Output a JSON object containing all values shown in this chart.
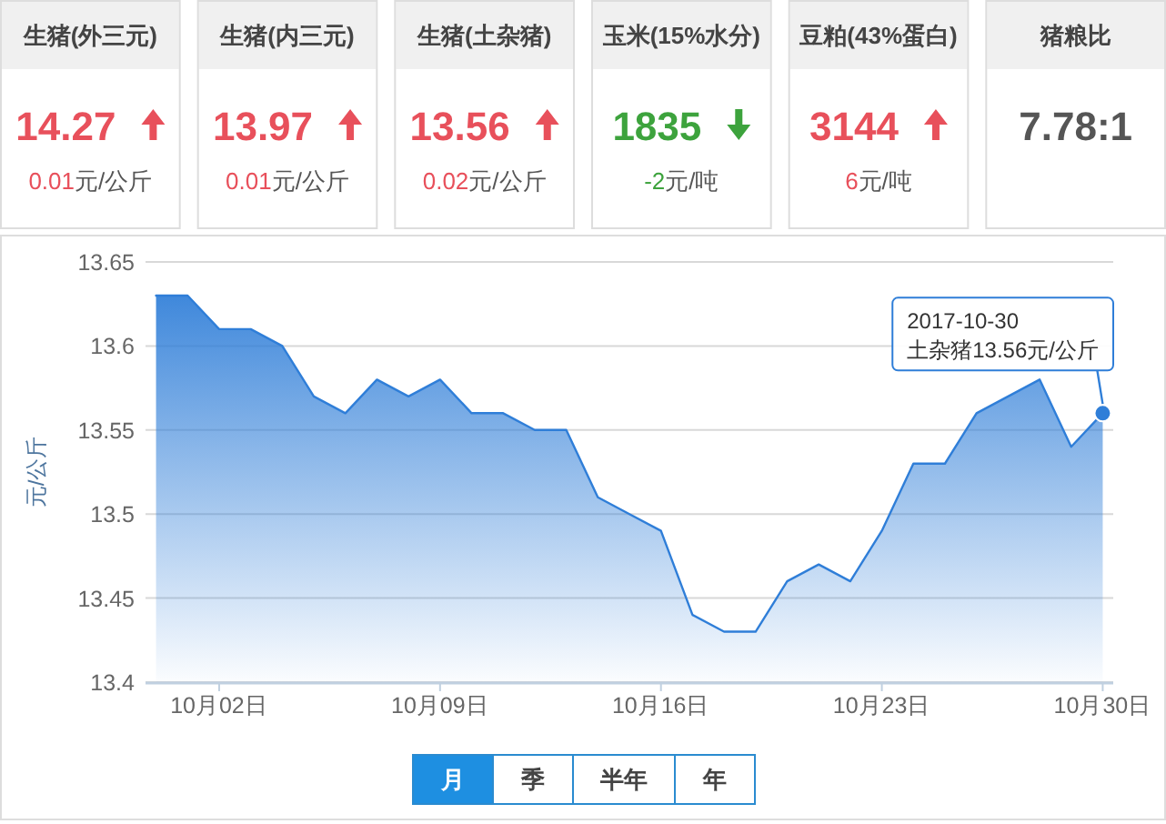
{
  "chart_data": [
    {
      "type": "other",
      "title": "生猪(外三元)",
      "annotations": [
        "14.27",
        "元/公斤"
      ],
      "values": [
        0.01
      ],
      "data_labels": true,
      "color": "#e8505b"
    },
    {
      "type": "other",
      "title": "生猪(内三元)",
      "annotations": [
        "13.97",
        "元/公斤"
      ],
      "values": [
        0.01
      ],
      "data_labels": true,
      "color": "#e8505b"
    },
    {
      "type": "other",
      "title": "生猪(土杂猪)",
      "annotations": [
        "13.56",
        "元/公斤"
      ],
      "values": [
        0.02
      ],
      "data_labels": true,
      "color": "#e8505b"
    },
    {
      "type": "other",
      "title": "玉米(15%水分)",
      "annotations": [
        "1835",
        "元/吨"
      ],
      "values": [
        -2
      ],
      "data_labels": true,
      "color": "#3da33d"
    },
    {
      "type": "other",
      "title": "豆粕(43%蛋白)",
      "annotations": [
        "3144",
        "元/吨"
      ],
      "values": [
        6
      ],
      "data_labels": true,
      "color": "#e8505b"
    },
    {
      "type": "other",
      "title": "猪粮比",
      "annotations": [
        "7.78:1"
      ],
      "color": "#555555"
    },
    {
      "type": "area",
      "ylabel": "元/公斤",
      "color": "#2f7ed8",
      "x": [
        "2017-09-30",
        "2017-10-01",
        "2017-10-02",
        "2017-10-03",
        "2017-10-04",
        "2017-10-05",
        "2017-10-06",
        "2017-10-07",
        "2017-10-08",
        "2017-10-09",
        "2017-10-10",
        "2017-10-11",
        "2017-10-12",
        "2017-10-13",
        "2017-10-14",
        "2017-10-15",
        "2017-10-16",
        "2017-10-17",
        "2017-10-18",
        "2017-10-19",
        "2017-10-20",
        "2017-10-21",
        "2017-10-22",
        "2017-10-23",
        "2017-10-24",
        "2017-10-25",
        "2017-10-26",
        "2017-10-27",
        "2017-10-28",
        "2017-10-29",
        "2017-10-30"
      ],
      "values": [
        13.63,
        13.63,
        13.61,
        13.61,
        13.6,
        13.57,
        13.56,
        13.58,
        13.57,
        13.58,
        13.56,
        13.56,
        13.55,
        13.55,
        13.51,
        13.5,
        13.49,
        13.44,
        13.43,
        13.43,
        13.46,
        13.47,
        13.46,
        13.49,
        13.53,
        13.53,
        13.56,
        13.57,
        13.58,
        13.54,
        13.56
      ],
      "xlim": [
        "2017-09-29T16:00",
        "2017-10-30T08:00"
      ],
      "xticks": [
        {
          "value": "2017-10-02",
          "label": "10月02日"
        },
        {
          "value": "2017-10-09",
          "label": "10月09日"
        },
        {
          "value": "2017-10-16",
          "label": "10月16日"
        },
        {
          "value": "2017-10-23",
          "label": "10月23日"
        },
        {
          "value": "2017-10-30",
          "label": "10月30日"
        }
      ],
      "ylim": [
        13.4,
        13.65
      ],
      "yticks": [
        13.4,
        13.45,
        13.5,
        13.55,
        13.6,
        13.65
      ],
      "grid": "y",
      "annotations": [
        {
          "text": "2017-10-30\n土杂猪13.56元/公斤",
          "x": "2017-10-30",
          "y": 13.56
        },
        "月",
        "季",
        "半年",
        "年"
      ]
    }
  ]
}
